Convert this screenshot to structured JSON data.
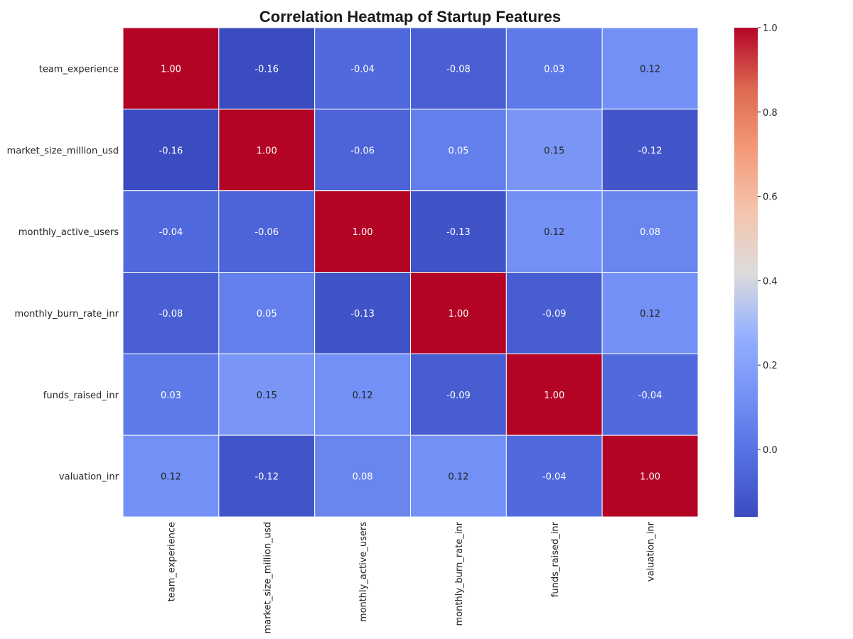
{
  "chart_data": {
    "type": "heatmap",
    "title": "Correlation Heatmap of Startup Features",
    "rows": [
      "team_experience",
      "market_size_million_usd",
      "monthly_active_users",
      "monthly_burn_rate_inr",
      "funds_raised_inr",
      "valuation_inr"
    ],
    "columns": [
      "team_experience",
      "market_size_million_usd",
      "monthly_active_users",
      "monthly_burn_rate_inr",
      "funds_raised_inr",
      "valuation_inr"
    ],
    "values": [
      [
        1.0,
        -0.16,
        -0.04,
        -0.08,
        0.03,
        0.12
      ],
      [
        -0.16,
        1.0,
        -0.06,
        0.05,
        0.15,
        -0.12
      ],
      [
        -0.04,
        -0.06,
        1.0,
        -0.13,
        0.12,
        0.08
      ],
      [
        -0.08,
        0.05,
        -0.13,
        1.0,
        -0.09,
        0.12
      ],
      [
        0.03,
        0.15,
        0.12,
        -0.09,
        1.0,
        -0.04
      ],
      [
        0.12,
        -0.12,
        0.08,
        0.12,
        -0.04,
        1.0
      ]
    ],
    "cell_labels": [
      [
        "1.00",
        "-0.16",
        "-0.04",
        "-0.08",
        "0.03",
        "0.12"
      ],
      [
        "-0.16",
        "1.00",
        "-0.06",
        "0.05",
        "0.15",
        "-0.12"
      ],
      [
        "-0.04",
        "-0.06",
        "1.00",
        "-0.13",
        "0.12",
        "0.08"
      ],
      [
        "-0.08",
        "0.05",
        "-0.13",
        "1.00",
        "-0.09",
        "0.12"
      ],
      [
        "0.03",
        "0.15",
        "0.12",
        "-0.09",
        "1.00",
        "-0.04"
      ],
      [
        "0.12",
        "-0.12",
        "0.08",
        "0.12",
        "-0.04",
        "1.00"
      ]
    ],
    "colormap": "coolwarm",
    "color_range": [
      -0.16,
      1.0
    ],
    "colorbar_ticks": [
      0.0,
      0.2,
      0.4,
      0.6,
      0.8,
      1.0
    ],
    "colorbar_tick_labels": [
      "0.0",
      "0.2",
      "0.4",
      "0.6",
      "0.8",
      "1.0"
    ],
    "grid": false,
    "legend": "colorbar-right"
  }
}
